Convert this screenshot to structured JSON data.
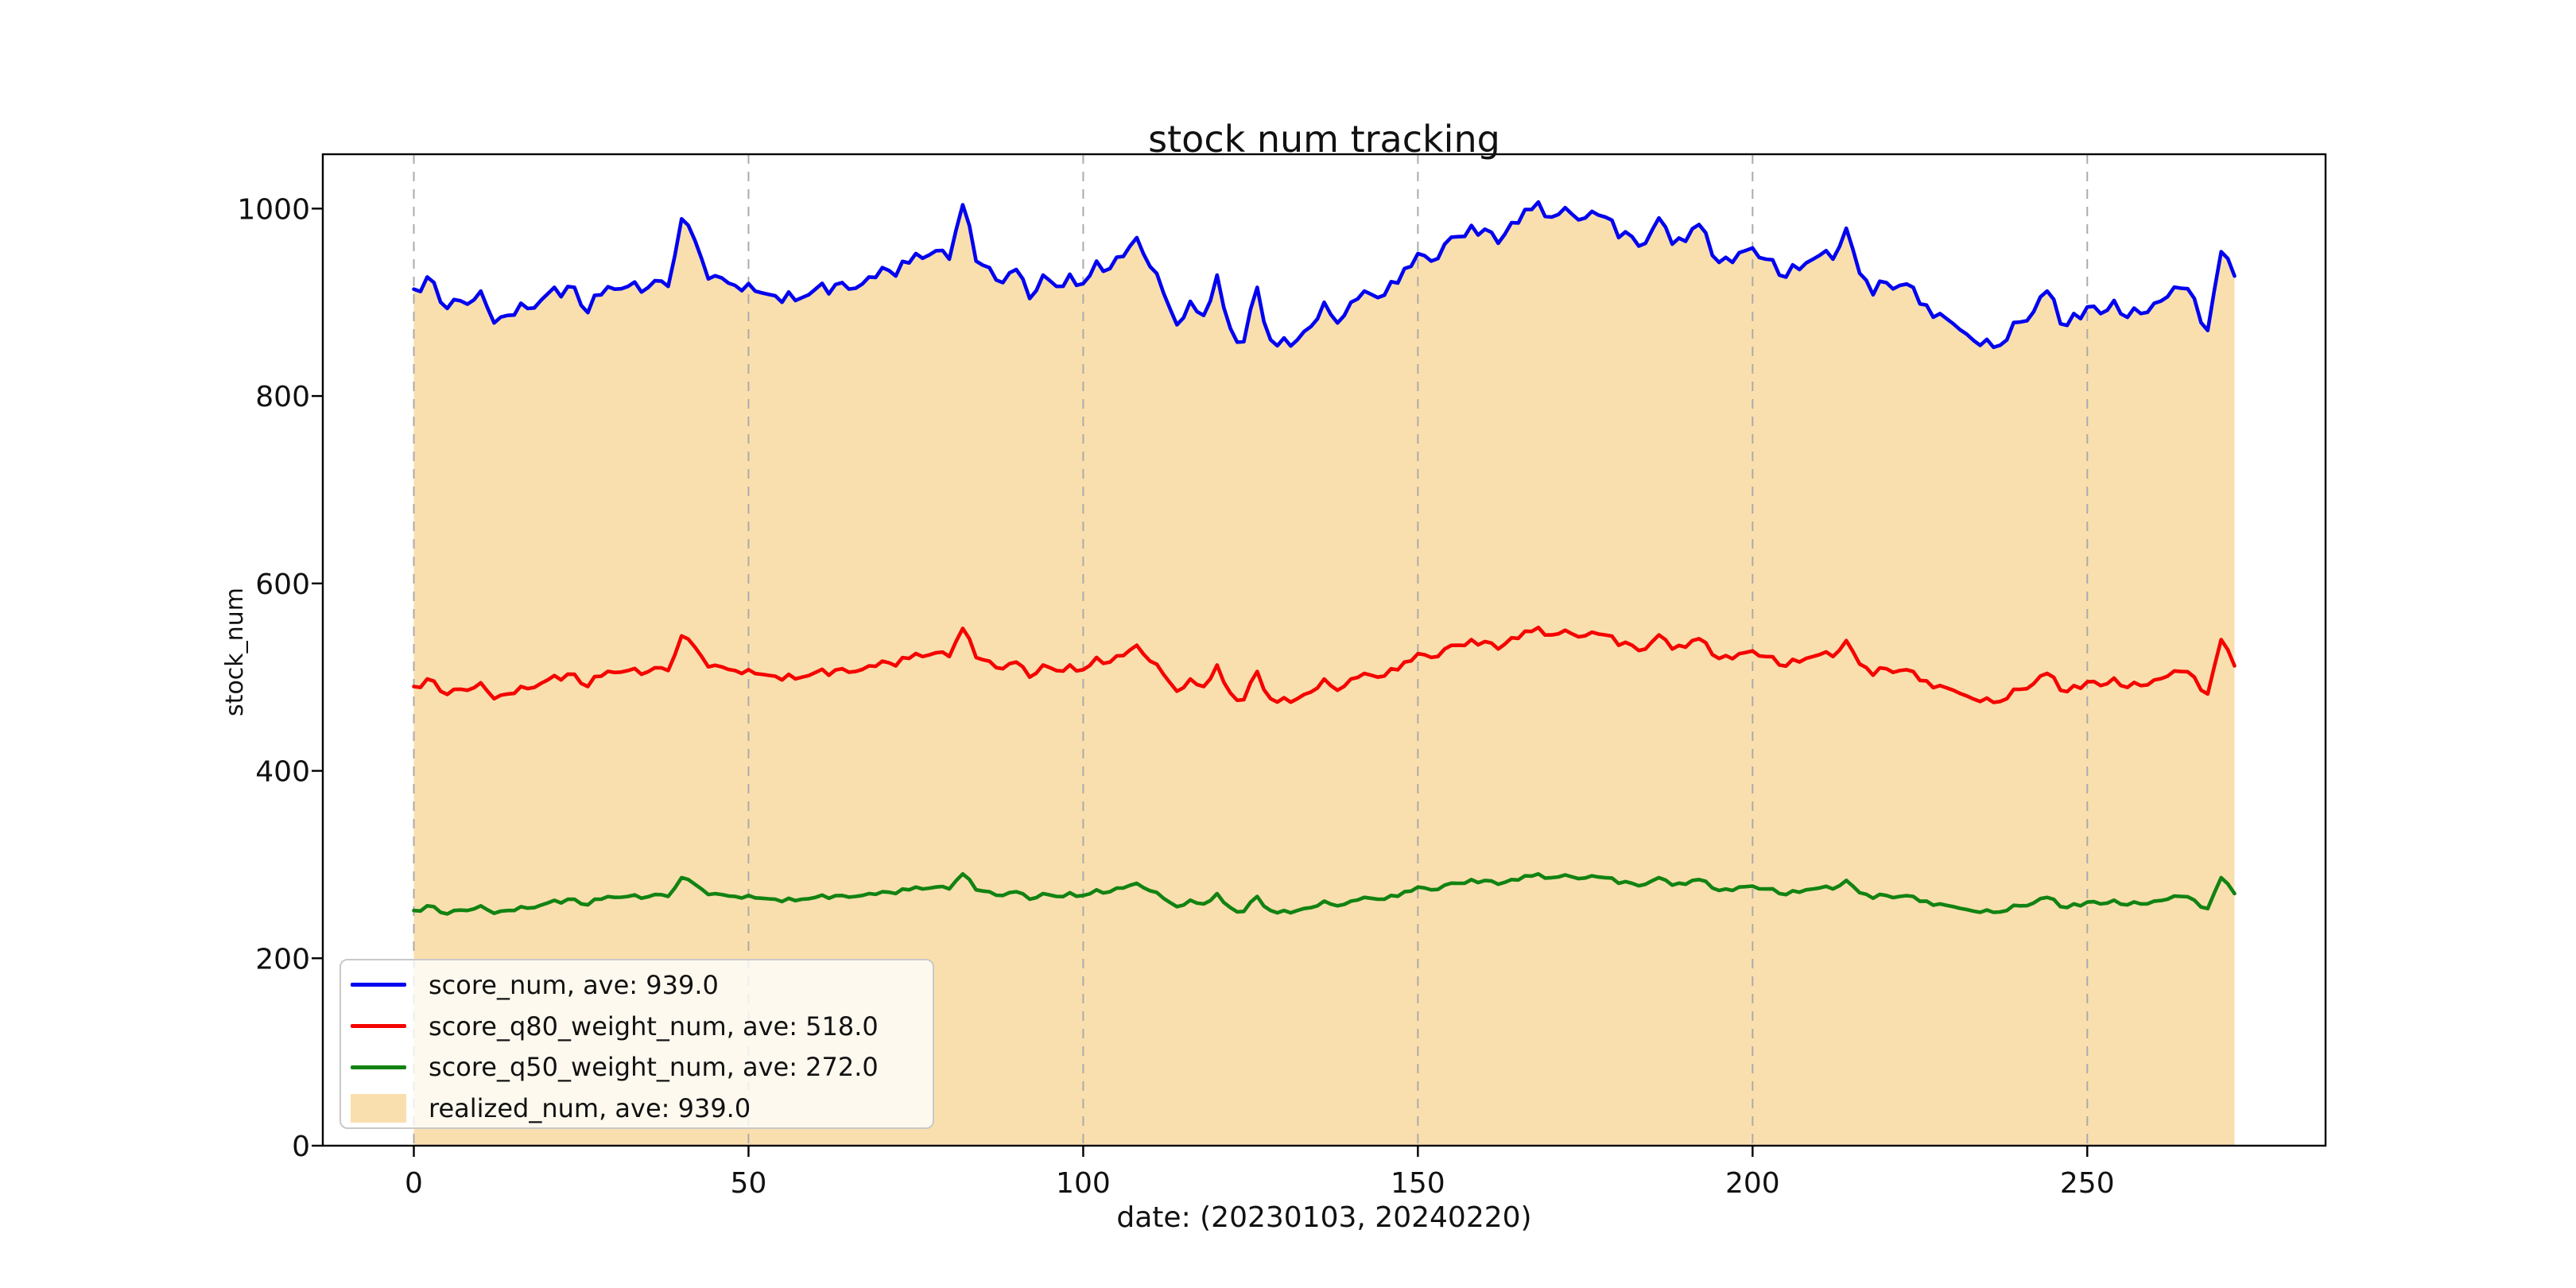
{
  "title": "stock num tracking",
  "xlabel": "date: (20230103, 20240220)",
  "ylabel": "stock_num",
  "colors": {
    "score_num": "#0202f0",
    "score_q80_weight_num": "#f50400",
    "score_q50_weight_num": "#128312",
    "realized_num": "#fadfae",
    "grid": "#ababab",
    "spine": "#000000",
    "text": "#111111",
    "legend_border": "#c9c9c9"
  },
  "legend": [
    {
      "label": "score_num, ave: 939.0",
      "series": "score_num",
      "type": "line"
    },
    {
      "label": "score_q80_weight_num, ave: 518.0",
      "series": "score_q80_weight_num",
      "type": "line"
    },
    {
      "label": "score_q50_weight_num, ave: 272.0",
      "series": "score_q50_weight_num",
      "type": "line"
    },
    {
      "label": "realized_num, ave: 939.0",
      "series": "realized_num",
      "type": "patch"
    }
  ],
  "chart_data": {
    "type": "line",
    "title": "stock num tracking",
    "xlabel": "date: (20230103, 20240220)",
    "ylabel": "stock_num",
    "xlim": [
      -13.6,
      285.6
    ],
    "ylim": [
      0,
      1058
    ],
    "xticks": [
      0,
      50,
      100,
      150,
      200,
      250
    ],
    "yticks": [
      0,
      200,
      400,
      600,
      800,
      1000
    ],
    "grid": "vertical-dashed",
    "legend_position": "lower-left",
    "x_start": 0,
    "x_step": 2,
    "series": [
      {
        "name": "score_num",
        "ave": 939.0,
        "style": "line",
        "noise_amplitude": 9,
        "values": [
          914,
          927,
          900,
          903,
          898,
          912,
          878,
          886,
          899,
          894,
          909,
          906,
          916,
          889,
          908,
          914,
          917,
          911,
          923,
          917,
          989,
          966,
          925,
          926,
          918,
          920,
          910,
          907,
          911,
          905,
          914,
          909,
          921,
          915,
          927,
          937,
          928,
          942,
          947,
          955,
          946,
          1004,
          944,
          937,
          921,
          935,
          904,
          929,
          917,
          930,
          920,
          944,
          936,
          949,
          969,
          938,
          910,
          876,
          901,
          886,
          929,
          872,
          858,
          916,
          860,
          862,
          860,
          874,
          900,
          878,
          900,
          912,
          905,
          922,
          936,
          952,
          944,
          962,
          970,
          982,
          978,
          963,
          985,
          999,
          1007,
          991,
          1001,
          988,
          997,
          991,
          969,
          970,
          963,
          990,
          962,
          965,
          983,
          950,
          948,
          953,
          958,
          946,
          929,
          940,
          942,
          950,
          946,
          979,
          931,
          908,
          921,
          918,
          916,
          897,
          888,
          877,
          866,
          854,
          852,
          860,
          879,
          890,
          912,
          877,
          888,
          895,
          888,
          902,
          884,
          888,
          899,
          906,
          915,
          904,
          870,
          954,
          928
        ]
      },
      {
        "name": "score_q80_weight_num",
        "ave": 518.0,
        "style": "line",
        "noise_amplitude": 5,
        "values": [
          490,
          498,
          485,
          487,
          486,
          494,
          477,
          482,
          490,
          489,
          497,
          497,
          503,
          490,
          501,
          505,
          507,
          503,
          510,
          507,
          544,
          532,
          511,
          511,
          507,
          508,
          503,
          501,
          503,
          500,
          505,
          502,
          509,
          506,
          512,
          517,
          512,
          520,
          522,
          526,
          522,
          552,
          521,
          517,
          509,
          516,
          500,
          513,
          507,
          513,
          508,
          521,
          516,
          523,
          534,
          517,
          503,
          485,
          498,
          490,
          513,
          483,
          476,
          506,
          477,
          478,
          477,
          484,
          498,
          486,
          498,
          504,
          500,
          509,
          516,
          525,
          521,
          530,
          534,
          540,
          538,
          530,
          542,
          549,
          553,
          545,
          550,
          543,
          548,
          545,
          534,
          534,
          530,
          545,
          530,
          532,
          541,
          524,
          523,
          525,
          528,
          522,
          513,
          519,
          520,
          524,
          522,
          539,
          514,
          502,
          509,
          507,
          506,
          496,
          491,
          486,
          480,
          474,
          473,
          477,
          487,
          493,
          504,
          486,
          491,
          495,
          491,
          499,
          489,
          491,
          497,
          501,
          506,
          500,
          482,
          540,
          512
        ]
      },
      {
        "name": "score_q50_weight_num",
        "ave": 272.0,
        "style": "line",
        "noise_amplitude": 3,
        "values": [
          251,
          256,
          249,
          251,
          251,
          256,
          248,
          251,
          255,
          254,
          259,
          259,
          263,
          257,
          263,
          265,
          266,
          264,
          268,
          266,
          286,
          279,
          268,
          268,
          266,
          267,
          264,
          263,
          264,
          263,
          265,
          264,
          267,
          266,
          269,
          271,
          269,
          273,
          274,
          276,
          274,
          290,
          273,
          271,
          267,
          271,
          263,
          269,
          266,
          270,
          267,
          273,
          271,
          275,
          280,
          272,
          264,
          255,
          262,
          258,
          269,
          254,
          250,
          266,
          251,
          251,
          251,
          254,
          261,
          256,
          261,
          265,
          263,
          267,
          271,
          276,
          273,
          278,
          280,
          284,
          283,
          279,
          284,
          288,
          290,
          286,
          289,
          285,
          288,
          286,
          280,
          280,
          279,
          286,
          278,
          279,
          284,
          275,
          274,
          276,
          277,
          274,
          269,
          272,
          273,
          275,
          274,
          283,
          270,
          264,
          267,
          266,
          266,
          261,
          258,
          255,
          252,
          249,
          249,
          251,
          256,
          259,
          265,
          255,
          258,
          260,
          258,
          262,
          257,
          258,
          261,
          263,
          266,
          262,
          253,
          286,
          269
        ]
      },
      {
        "name": "realized_num",
        "ave": 939.0,
        "style": "fill",
        "values_from": "score_num"
      }
    ]
  }
}
